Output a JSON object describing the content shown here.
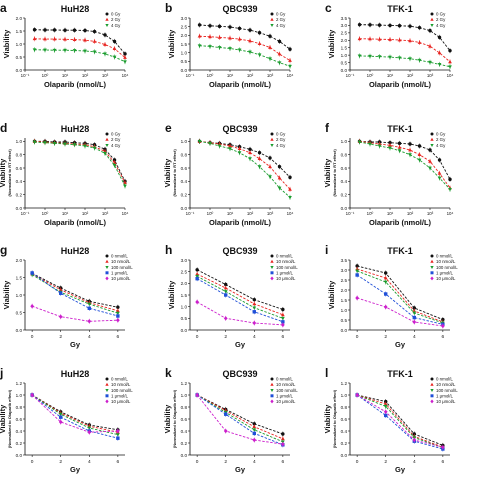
{
  "figure": {
    "axis_labels": {
      "viability": "Viability",
      "normalized": "(Normalized to RT effect)",
      "normalized_olap": "(Normalized to Olaparib effect)",
      "olaparib": "Olaparib (nmol/L)",
      "gy": "Gy"
    },
    "legend_rt": [
      "0 Gy",
      "2 Gy",
      "4 Gy"
    ],
    "legend_dose": [
      "0 nmol/L",
      "10 nmol/L",
      "100 nmol/L",
      "1 μmol/L",
      "10 μmol/L"
    ],
    "colors": {
      "black": "#111111",
      "red": "#e8231f",
      "green": "#1a9c2e",
      "blue": "#1f4fd8",
      "magenta": "#cc1fcc"
    }
  },
  "chart_data": [
    {
      "panel": "a",
      "title": "HuH28",
      "type": "scatter",
      "xscale": "log",
      "xlabel": "Olaparib (nmol/L)",
      "ylabel": "Viability",
      "xticks": [
        "10⁻¹",
        "10⁰",
        "10¹",
        "10²",
        "10³",
        "10⁴"
      ],
      "yticks": [
        "0.0",
        "0.5",
        "1.0",
        "1.5",
        "2.0"
      ],
      "ylim": [
        0,
        2.0
      ],
      "x": [
        0.3,
        1,
        3,
        10,
        30,
        100,
        300,
        1000,
        3000,
        10000
      ],
      "legend": [
        "0 Gy",
        "2 Gy",
        "4 Gy"
      ],
      "series": [
        {
          "name": "0 Gy",
          "values": [
            1.55,
            1.54,
            1.54,
            1.53,
            1.53,
            1.52,
            1.48,
            1.35,
            1.1,
            0.62
          ]
        },
        {
          "name": "2 Gy",
          "values": [
            1.2,
            1.19,
            1.19,
            1.18,
            1.17,
            1.15,
            1.1,
            0.98,
            0.82,
            0.48
          ]
        },
        {
          "name": "4 Gy",
          "values": [
            0.78,
            0.77,
            0.76,
            0.76,
            0.75,
            0.73,
            0.7,
            0.62,
            0.5,
            0.32
          ]
        }
      ]
    },
    {
      "panel": "b",
      "title": "QBC939",
      "type": "scatter",
      "xscale": "log",
      "xlabel": "Olaparib (nmol/L)",
      "ylabel": "Viability",
      "xticks": [
        "10⁻¹",
        "10⁰",
        "10¹",
        "10²",
        "10³",
        "10⁴"
      ],
      "yticks": [
        "0.0",
        "0.5",
        "1.0",
        "1.5",
        "2.0",
        "2.5",
        "3.0"
      ],
      "ylim": [
        0,
        3.0
      ],
      "x": [
        0.3,
        1,
        3,
        10,
        30,
        100,
        300,
        1000,
        3000,
        10000
      ],
      "legend": [
        "0 Gy",
        "2 Gy",
        "4 Gy"
      ],
      "series": [
        {
          "name": "0 Gy",
          "values": [
            2.6,
            2.55,
            2.52,
            2.48,
            2.4,
            2.3,
            2.15,
            1.95,
            1.65,
            1.2
          ]
        },
        {
          "name": "2 Gy",
          "values": [
            1.95,
            1.92,
            1.88,
            1.84,
            1.78,
            1.68,
            1.52,
            1.3,
            0.92,
            0.55
          ]
        },
        {
          "name": "4 Gy",
          "values": [
            1.4,
            1.36,
            1.3,
            1.24,
            1.16,
            1.04,
            0.88,
            0.65,
            0.42,
            0.22
          ]
        }
      ]
    },
    {
      "panel": "c",
      "title": "TFK-1",
      "type": "scatter",
      "xscale": "log",
      "xlabel": "Olaparib (nmol/L)",
      "ylabel": "Viability",
      "xticks": [
        "10⁻¹",
        "10⁰",
        "10¹",
        "10²",
        "10³",
        "10⁴"
      ],
      "yticks": [
        "0.0",
        "0.5",
        "1.0",
        "1.5",
        "2.0",
        "2.5",
        "3.0",
        "3.5"
      ],
      "ylim": [
        0,
        3.5
      ],
      "x": [
        0.3,
        1,
        3,
        10,
        30,
        100,
        300,
        1000,
        3000,
        10000
      ],
      "legend": [
        "0 Gy",
        "2 Gy",
        "4 Gy"
      ],
      "series": [
        {
          "name": "0 Gy",
          "values": [
            3.05,
            3.04,
            3.02,
            3.0,
            2.98,
            2.95,
            2.85,
            2.65,
            2.2,
            1.3
          ]
        },
        {
          "name": "2 Gy",
          "values": [
            2.1,
            2.09,
            2.07,
            2.05,
            2.02,
            1.97,
            1.85,
            1.6,
            1.15,
            0.55
          ]
        },
        {
          "name": "4 Gy",
          "values": [
            0.95,
            0.93,
            0.9,
            0.87,
            0.82,
            0.76,
            0.66,
            0.52,
            0.38,
            0.22
          ]
        }
      ]
    },
    {
      "panel": "d",
      "title": "HuH28",
      "type": "scatter",
      "xscale": "log",
      "xlabel": "Olaparib (nmol/L)",
      "ylabel": "Viability",
      "ylabel2": "(Normalized to RT effect)",
      "xticks": [
        "10⁻¹",
        "10⁰",
        "10¹",
        "10²",
        "10³",
        "10⁴"
      ],
      "yticks": [
        "0.0",
        "0.2",
        "0.4",
        "0.6",
        "0.8",
        "1.0"
      ],
      "ylim": [
        0,
        1.05
      ],
      "x": [
        0.3,
        1,
        3,
        10,
        30,
        100,
        300,
        1000,
        3000,
        10000
      ],
      "legend": [
        "0 Gy",
        "2 Gy",
        "4 Gy"
      ],
      "series": [
        {
          "name": "0 Gy",
          "values": [
            1.0,
            1.0,
            0.99,
            0.99,
            0.98,
            0.97,
            0.95,
            0.88,
            0.72,
            0.4
          ]
        },
        {
          "name": "2 Gy",
          "values": [
            1.0,
            0.99,
            0.98,
            0.97,
            0.96,
            0.95,
            0.92,
            0.85,
            0.68,
            0.38
          ]
        },
        {
          "name": "4 Gy",
          "values": [
            0.99,
            0.98,
            0.97,
            0.96,
            0.95,
            0.93,
            0.9,
            0.82,
            0.64,
            0.33
          ]
        }
      ]
    },
    {
      "panel": "e",
      "title": "QBC939",
      "type": "scatter",
      "xscale": "log",
      "xlabel": "Olaparib (nmol/L)",
      "ylabel": "Viability",
      "ylabel2": "(Normalized to RT effect)",
      "xticks": [
        "10⁻¹",
        "10⁰",
        "10¹",
        "10²",
        "10³",
        "10⁴"
      ],
      "yticks": [
        "0.0",
        "0.2",
        "0.4",
        "0.6",
        "0.8",
        "1.0"
      ],
      "ylim": [
        0,
        1.05
      ],
      "x": [
        0.3,
        1,
        3,
        10,
        30,
        100,
        300,
        1000,
        3000,
        10000
      ],
      "legend": [
        "0 Gy",
        "2 Gy",
        "4 Gy"
      ],
      "series": [
        {
          "name": "0 Gy",
          "values": [
            1.0,
            0.98,
            0.97,
            0.95,
            0.92,
            0.88,
            0.83,
            0.75,
            0.62,
            0.46
          ]
        },
        {
          "name": "2 Gy",
          "values": [
            1.0,
            0.98,
            0.96,
            0.93,
            0.89,
            0.83,
            0.74,
            0.62,
            0.45,
            0.28
          ]
        },
        {
          "name": "4 Gy",
          "values": [
            1.0,
            0.97,
            0.93,
            0.89,
            0.83,
            0.74,
            0.62,
            0.47,
            0.3,
            0.16
          ]
        }
      ]
    },
    {
      "panel": "f",
      "title": "TFK-1",
      "type": "scatter",
      "xscale": "log",
      "xlabel": "Olaparib (nmol/L)",
      "ylabel": "Viability",
      "ylabel2": "(Normalized to RT effect)",
      "xticks": [
        "10⁻¹",
        "10⁰",
        "10¹",
        "10²",
        "10³",
        "10⁴"
      ],
      "yticks": [
        "0.0",
        "0.2",
        "0.4",
        "0.6",
        "0.8",
        "1.0"
      ],
      "ylim": [
        0,
        1.05
      ],
      "x": [
        0.3,
        1,
        3,
        10,
        30,
        100,
        300,
        1000,
        3000,
        10000
      ],
      "legend": [
        "0 Gy",
        "2 Gy",
        "4 Gy"
      ],
      "series": [
        {
          "name": "0 Gy",
          "values": [
            1.0,
            0.99,
            0.99,
            0.98,
            0.97,
            0.96,
            0.93,
            0.87,
            0.72,
            0.43
          ]
        },
        {
          "name": "2 Gy",
          "values": [
            1.0,
            0.98,
            0.96,
            0.94,
            0.91,
            0.87,
            0.8,
            0.7,
            0.52,
            0.3
          ]
        },
        {
          "name": "4 Gy",
          "values": [
            0.99,
            0.96,
            0.93,
            0.9,
            0.86,
            0.8,
            0.72,
            0.6,
            0.45,
            0.28
          ]
        }
      ]
    },
    {
      "panel": "g",
      "title": "HuH28",
      "type": "scatter",
      "xlabel": "Gy",
      "ylabel": "Viability",
      "xticks": [
        "0",
        "2",
        "4",
        "6"
      ],
      "xlim": [
        -0.5,
        6.5
      ],
      "yticks": [
        "0.0",
        "0.5",
        "1.0",
        "1.5",
        "2.0"
      ],
      "ylim": [
        0,
        2.0
      ],
      "x": [
        0,
        2,
        4,
        6
      ],
      "legend": [
        "0 nmol/L",
        "10 nmol/L",
        "100 nmol/L",
        "1 μmol/L",
        "10 μmol/L"
      ],
      "series": [
        {
          "name": "0 nmol/L",
          "values": [
            1.62,
            1.2,
            0.82,
            0.65
          ]
        },
        {
          "name": "10 nmol/L",
          "values": [
            1.6,
            1.15,
            0.78,
            0.55
          ]
        },
        {
          "name": "100 nmol/L",
          "values": [
            1.58,
            1.08,
            0.74,
            0.48
          ]
        },
        {
          "name": "1 μmol/L",
          "values": [
            1.63,
            1.05,
            0.62,
            0.4
          ]
        },
        {
          "name": "10 μmol/L",
          "values": [
            0.68,
            0.38,
            0.25,
            0.28
          ]
        }
      ]
    },
    {
      "panel": "h",
      "title": "QBC939",
      "type": "scatter",
      "xlabel": "Gy",
      "ylabel": "Viability",
      "xticks": [
        "0",
        "2",
        "4",
        "6"
      ],
      "xlim": [
        -0.5,
        6.5
      ],
      "yticks": [
        "0.0",
        "0.5",
        "1.0",
        "1.5",
        "2.0",
        "2.5",
        "3.0"
      ],
      "ylim": [
        0,
        3.0
      ],
      "x": [
        0,
        2,
        4,
        6
      ],
      "legend": [
        "0 nmol/L",
        "10 nmol/L",
        "100 nmol/L",
        "1 μmol/L",
        "10 μmol/L"
      ],
      "series": [
        {
          "name": "0 nmol/L",
          "values": [
            2.58,
            1.95,
            1.3,
            0.88
          ]
        },
        {
          "name": "10 nmol/L",
          "values": [
            2.4,
            1.8,
            1.12,
            0.65
          ]
        },
        {
          "name": "100 nmol/L",
          "values": [
            2.3,
            1.65,
            0.95,
            0.5
          ]
        },
        {
          "name": "1 μmol/L",
          "values": [
            2.2,
            1.5,
            0.78,
            0.35
          ]
        },
        {
          "name": "10 μmol/L",
          "values": [
            1.2,
            0.5,
            0.3,
            0.22
          ]
        }
      ]
    },
    {
      "panel": "i",
      "title": "TFK-1",
      "type": "scatter",
      "xlabel": "Gy",
      "ylabel": "Viability",
      "xticks": [
        "0",
        "2",
        "4",
        "6"
      ],
      "xlim": [
        -0.5,
        6.5
      ],
      "yticks": [
        "0.0",
        "0.5",
        "1.0",
        "1.5",
        "2.0",
        "2.5",
        "3.0",
        "3.5"
      ],
      "ylim": [
        0,
        3.5
      ],
      "x": [
        0,
        2,
        4,
        6
      ],
      "legend": [
        "0 nmol/L",
        "10 nmol/L",
        "100 nmol/L",
        "1 μmol/L",
        "10 μmol/L"
      ],
      "series": [
        {
          "name": "0 nmol/L",
          "values": [
            3.2,
            2.85,
            1.1,
            0.52
          ]
        },
        {
          "name": "10 nmol/L",
          "values": [
            3.05,
            2.6,
            0.95,
            0.4
          ]
        },
        {
          "name": "100 nmol/L",
          "values": [
            2.95,
            2.4,
            0.85,
            0.35
          ]
        },
        {
          "name": "1 μmol/L",
          "values": [
            2.75,
            1.8,
            0.62,
            0.28
          ]
        },
        {
          "name": "10 μmol/L",
          "values": [
            1.6,
            1.15,
            0.4,
            0.2
          ]
        }
      ]
    },
    {
      "panel": "j",
      "title": "HuH28",
      "type": "scatter",
      "xlabel": "Gy",
      "ylabel": "Viability",
      "ylabel2": "(Normalized to Olaparib effect)",
      "xticks": [
        "0",
        "2",
        "4",
        "6"
      ],
      "xlim": [
        -0.5,
        6.5
      ],
      "yticks": [
        "0.0",
        "0.2",
        "0.4",
        "0.6",
        "0.8",
        "1.0",
        "1.2"
      ],
      "ylim": [
        0,
        1.2
      ],
      "x": [
        0,
        2,
        4,
        6
      ],
      "legend": [
        "0 nmol/L",
        "10 nmol/L",
        "100 nmol/L",
        "1 μmol/L",
        "10 μmol/L"
      ],
      "series": [
        {
          "name": "0 nmol/L",
          "values": [
            1.0,
            0.72,
            0.5,
            0.42
          ]
        },
        {
          "name": "10 nmol/L",
          "values": [
            1.0,
            0.7,
            0.48,
            0.38
          ]
        },
        {
          "name": "100 nmol/L",
          "values": [
            1.0,
            0.68,
            0.45,
            0.34
          ]
        },
        {
          "name": "1 μmol/L",
          "values": [
            1.0,
            0.63,
            0.4,
            0.28
          ]
        },
        {
          "name": "10 μmol/L",
          "values": [
            1.0,
            0.55,
            0.38,
            0.4
          ]
        }
      ]
    },
    {
      "panel": "k",
      "title": "QBC939",
      "type": "scatter",
      "xlabel": "Gy",
      "ylabel": "Viability",
      "ylabel2": "(Normalized to Olaparib effect)",
      "xticks": [
        "0",
        "2",
        "4",
        "6"
      ],
      "xlim": [
        -0.5,
        6.5
      ],
      "yticks": [
        "0.0",
        "0.2",
        "0.4",
        "0.6",
        "0.8",
        "1.0",
        "1.2"
      ],
      "ylim": [
        0,
        1.2
      ],
      "x": [
        0,
        2,
        4,
        6
      ],
      "legend": [
        "0 nmol/L",
        "10 nmol/L",
        "100 nmol/L",
        "1 μmol/L",
        "10 μmol/L"
      ],
      "series": [
        {
          "name": "0 nmol/L",
          "values": [
            1.0,
            0.76,
            0.52,
            0.35
          ]
        },
        {
          "name": "10 nmol/L",
          "values": [
            1.0,
            0.74,
            0.47,
            0.27
          ]
        },
        {
          "name": "100 nmol/L",
          "values": [
            1.0,
            0.71,
            0.42,
            0.22
          ]
        },
        {
          "name": "1 μmol/L",
          "values": [
            1.0,
            0.68,
            0.36,
            0.17
          ]
        },
        {
          "name": "10 μmol/L",
          "values": [
            1.0,
            0.4,
            0.25,
            0.18
          ]
        }
      ]
    },
    {
      "panel": "l",
      "title": "TFK-1",
      "type": "scatter",
      "xlabel": "Gy",
      "ylabel": "Viability",
      "ylabel2": "(Normalized to Olaparib effect)",
      "xticks": [
        "0",
        "2",
        "4",
        "6"
      ],
      "xlim": [
        -0.5,
        6.5
      ],
      "yticks": [
        "0.0",
        "0.2",
        "0.4",
        "0.6",
        "0.8",
        "1.0",
        "1.2"
      ],
      "ylim": [
        0,
        1.2
      ],
      "x": [
        0,
        2,
        4,
        6
      ],
      "legend": [
        "0 nmol/L",
        "10 nmol/L",
        "100 nmol/L",
        "1 μmol/L",
        "10 μmol/L"
      ],
      "series": [
        {
          "name": "0 nmol/L",
          "values": [
            1.0,
            0.89,
            0.35,
            0.16
          ]
        },
        {
          "name": "10 nmol/L",
          "values": [
            1.0,
            0.85,
            0.31,
            0.13
          ]
        },
        {
          "name": "100 nmol/L",
          "values": [
            1.0,
            0.81,
            0.29,
            0.12
          ]
        },
        {
          "name": "1 μmol/L",
          "values": [
            1.0,
            0.66,
            0.23,
            0.1
          ]
        },
        {
          "name": "10 μmol/L",
          "values": [
            1.0,
            0.72,
            0.25,
            0.13
          ]
        }
      ]
    }
  ]
}
